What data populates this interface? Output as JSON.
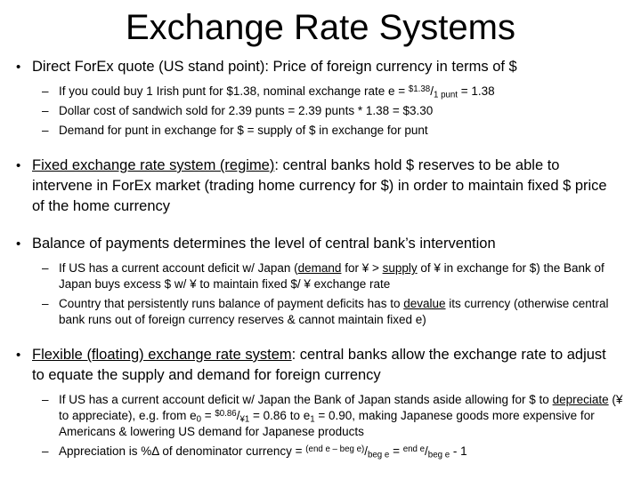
{
  "colors": {
    "background": "#ffffff",
    "text": "#000000"
  },
  "slide": {
    "title": "Exchange Rate Systems",
    "markers": {
      "level1": "•",
      "level2": "–"
    },
    "bullets": [
      {
        "id": "direct-forex-quote",
        "runs": [
          {
            "t": "Direct ForEx quote (US stand point): Price of foreign currency in terms of $"
          }
        ],
        "subs": [
          {
            "runs": [
              {
                "t": "If you could buy 1 Irish punt for $1.38, nominal exchange rate e = "
              },
              {
                "t": "$1.38",
                "s": "sup"
              },
              {
                "t": "/"
              },
              {
                "t": "1 punt",
                "s": "sub"
              },
              {
                "t": " = 1.38"
              }
            ]
          },
          {
            "runs": [
              {
                "t": "Dollar cost of sandwich sold for 2.39 punts = 2.39 punts * 1.38 = $3.30"
              }
            ]
          },
          {
            "runs": [
              {
                "t": "Demand for punt in exchange for $ = supply of $ in exchange for punt"
              }
            ]
          }
        ]
      },
      {
        "id": "fixed-exchange-rate-system",
        "runs": [
          {
            "t": "Fixed exchange rate system (regime)",
            "s": "u"
          },
          {
            "t": ": central banks hold $ reserves to be able to intervene in ForEx market (trading home currency for $) in order to maintain fixed $ price of the home currency"
          }
        ],
        "subs": []
      },
      {
        "id": "balance-of-payments",
        "runs": [
          {
            "t": "Balance of payments determines the level of central bank’s intervention"
          }
        ],
        "subs": [
          {
            "runs": [
              {
                "t": "If US has a current account deficit w/ Japan ("
              },
              {
                "t": "demand",
                "s": "u"
              },
              {
                "t": " for ¥ > "
              },
              {
                "t": "supply",
                "s": "u"
              },
              {
                "t": " of ¥ in exchange for $) the Bank of Japan buys excess $ w/ ¥ to maintain fixed $/ ¥  exchange rate"
              }
            ]
          },
          {
            "runs": [
              {
                "t": "Country that persistently runs balance of payment deficits has to "
              },
              {
                "t": "devalue",
                "s": "u"
              },
              {
                "t": " its currency (otherwise central bank runs out of foreign currency reserves & cannot maintain fixed e)"
              }
            ]
          }
        ]
      },
      {
        "id": "flexible-exchange-rate-system",
        "runs": [
          {
            "t": "Flexible (floating) exchange rate system",
            "s": "u"
          },
          {
            "t": ": central banks allow the exchange rate to adjust to equate the supply and demand for foreign currency"
          }
        ],
        "subs": [
          {
            "runs": [
              {
                "t": "If US has a current account deficit w/ Japan the Bank of Japan stands aside allowing for $ to "
              },
              {
                "t": "depreciate",
                "s": "u"
              },
              {
                "t": " (¥ to appreciate), e.g. from e"
              },
              {
                "t": "0",
                "s": "sub"
              },
              {
                "t": " = "
              },
              {
                "t": "$0.86",
                "s": "sup"
              },
              {
                "t": "/"
              },
              {
                "t": "¥1",
                "s": "sub"
              },
              {
                "t": " = 0.86 to e"
              },
              {
                "t": "1",
                "s": "sub"
              },
              {
                "t": " = 0.90, making Japanese goods more expensive for Americans & lowering US demand for Japanese products"
              }
            ]
          },
          {
            "runs": [
              {
                "t": "Appreciation is %Δ of denominator currency = "
              },
              {
                "t": "(end e – beg e)",
                "s": "sup"
              },
              {
                "t": "/"
              },
              {
                "t": "beg e",
                "s": "sub"
              },
              {
                "t": " = "
              },
              {
                "t": "end e",
                "s": "sup"
              },
              {
                "t": "/"
              },
              {
                "t": "beg e",
                "s": "sub"
              },
              {
                "t": " - 1"
              }
            ]
          }
        ]
      }
    ]
  }
}
